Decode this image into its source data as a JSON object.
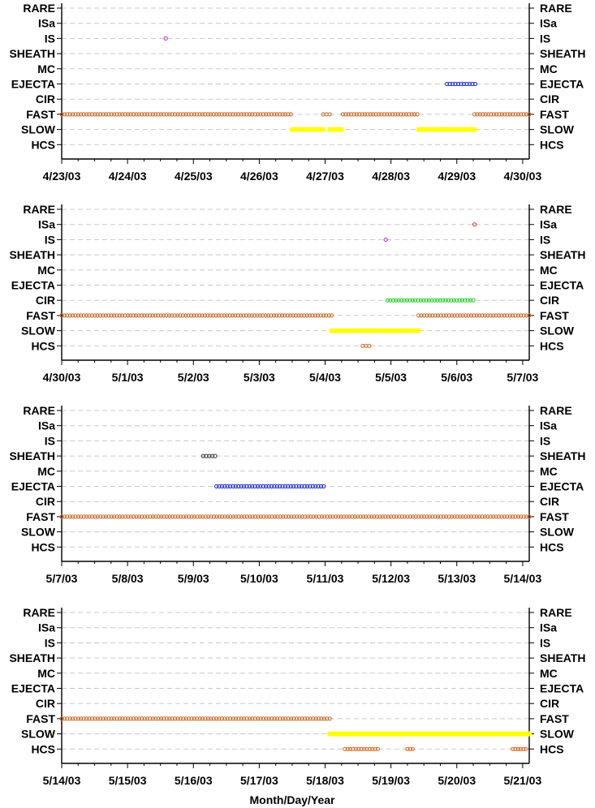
{
  "chart_data": {
    "type": "scatter",
    "xlabel": "Month/Day/Year",
    "categories": [
      "RARE",
      "ISa",
      "IS",
      "SHEATH",
      "MC",
      "EJECTA",
      "CIR",
      "FAST",
      "SLOW",
      "HCS"
    ],
    "colors": {
      "RARE": "#808080",
      "ISa": "#dd2222",
      "IS": "#cc22cc",
      "SHEATH": "#333333",
      "MC": "#808080",
      "EJECTA": "#1a2acc",
      "CIR": "#22cc22",
      "FAST": "#c46a2a",
      "SLOW": "#ffff00",
      "HCS": "#d06a20"
    },
    "panels": [
      {
        "xlim_days": [
          0,
          7.1
        ],
        "xticks": [
          "4/23/03",
          "4/24/03",
          "4/25/03",
          "4/26/03",
          "4/27/03",
          "4/28/03",
          "4/29/03",
          "4/30/03"
        ],
        "series": [
          {
            "category": "IS",
            "intervals": [
              [
                1.58,
                1.58
              ]
            ]
          },
          {
            "category": "EJECTA",
            "intervals": [
              [
                5.85,
                6.28
              ]
            ]
          },
          {
            "category": "FAST",
            "intervals": [
              [
                0.0,
                3.48
              ],
              [
                3.97,
                4.07
              ],
              [
                4.27,
                5.4
              ],
              [
                6.27,
                7.1
              ]
            ]
          },
          {
            "category": "SLOW",
            "intervals": [
              [
                3.5,
                3.97
              ],
              [
                4.07,
                4.25
              ],
              [
                5.42,
                6.27
              ]
            ]
          }
        ]
      },
      {
        "xlim_days": [
          0,
          7.1
        ],
        "xticks": [
          "4/30/03",
          "5/1/03",
          "5/2/03",
          "5/3/03",
          "5/4/03",
          "5/5/03",
          "5/6/03",
          "5/7/03"
        ],
        "series": [
          {
            "category": "ISa",
            "intervals": [
              [
                6.27,
                6.27
              ]
            ]
          },
          {
            "category": "IS",
            "intervals": [
              [
                4.92,
                4.92
              ]
            ]
          },
          {
            "category": "CIR",
            "intervals": [
              [
                4.95,
                6.25
              ]
            ]
          },
          {
            "category": "FAST",
            "intervals": [
              [
                0.0,
                4.1
              ],
              [
                5.42,
                7.1
              ]
            ]
          },
          {
            "category": "SLOW",
            "intervals": [
              [
                4.1,
                5.42
              ]
            ]
          },
          {
            "category": "HCS",
            "intervals": [
              [
                4.57,
                4.67
              ]
            ]
          }
        ]
      },
      {
        "xlim_days": [
          0,
          7.1
        ],
        "xticks": [
          "5/7/03",
          "5/8/03",
          "5/9/03",
          "5/10/03",
          "5/11/03",
          "5/12/03",
          "5/13/03",
          "5/14/03"
        ],
        "series": [
          {
            "category": "SHEATH",
            "intervals": [
              [
                2.15,
                2.33
              ]
            ]
          },
          {
            "category": "EJECTA",
            "intervals": [
              [
                2.35,
                3.98
              ]
            ]
          },
          {
            "category": "FAST",
            "intervals": [
              [
                0.0,
                7.1
              ]
            ]
          }
        ]
      },
      {
        "xlim_days": [
          0,
          7.1
        ],
        "xticks": [
          "5/14/03",
          "5/15/03",
          "5/16/03",
          "5/17/03",
          "5/18/03",
          "5/19/03",
          "5/20/03",
          "5/21/03"
        ],
        "series": [
          {
            "category": "FAST",
            "intervals": [
              [
                0.0,
                4.07
              ]
            ]
          },
          {
            "category": "SLOW",
            "intervals": [
              [
                4.07,
                7.1
              ]
            ]
          },
          {
            "category": "HCS",
            "intervals": [
              [
                4.3,
                4.8
              ],
              [
                5.25,
                5.33
              ],
              [
                6.85,
                7.05
              ]
            ]
          }
        ]
      }
    ]
  }
}
